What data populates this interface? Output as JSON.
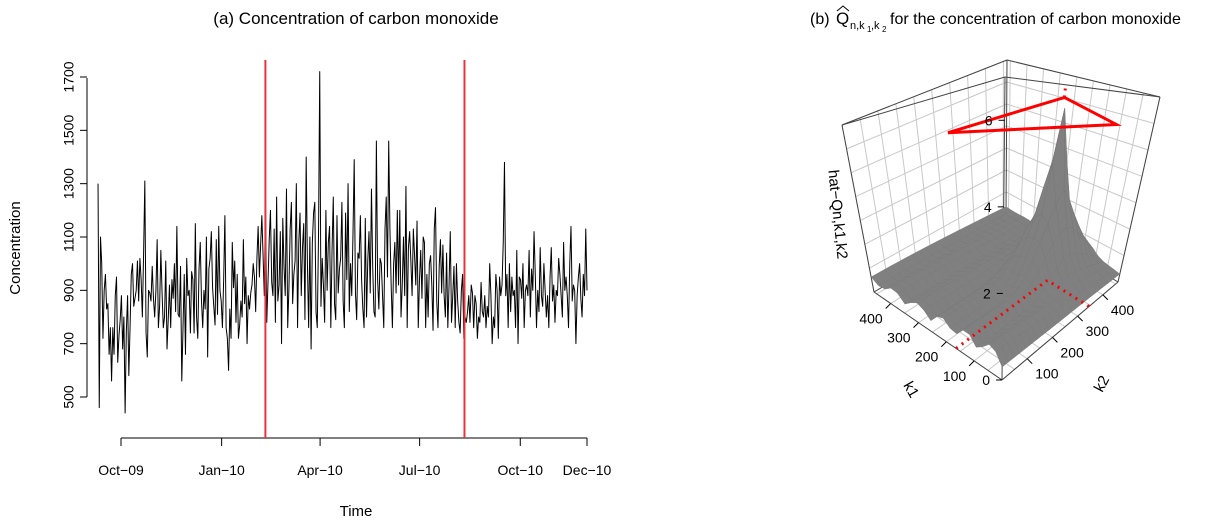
{
  "chart_data": [
    {
      "type": "line",
      "title": "(a) Concentration of carbon monoxide",
      "xlabel": "Time",
      "ylabel": "Concentration",
      "xlim": [
        "2009-09-01",
        "2010-12-01"
      ],
      "ylim": [
        400,
        1760
      ],
      "grid": false,
      "x_ticks": [
        {
          "label": "Oct−09",
          "date": "2009-10-01"
        },
        {
          "label": "Jan−10",
          "date": "2010-01-01"
        },
        {
          "label": "Apr−10",
          "date": "2010-04-01"
        },
        {
          "label": "Jul−10",
          "date": "2010-07-01"
        },
        {
          "label": "Oct−10",
          "date": "2010-10-01"
        },
        {
          "label": "Dec−10",
          "date": "2010-12-01"
        }
      ],
      "y_ticks": [
        500,
        700,
        900,
        1100,
        1300,
        1500,
        1700
      ],
      "change_points": [
        "2010-02-10",
        "2010-08-11"
      ],
      "change_point_color": "#e8343c",
      "series": [
        {
          "color": "#000000",
          "x_start": "2009-09-10",
          "x_end": "2010-12-01",
          "values": [
            1300,
            460,
            1100,
            1000,
            720,
            900,
            960,
            830,
            850,
            660,
            760,
            560,
            760,
            660,
            880,
            950,
            630,
            730,
            790,
            880,
            680,
            800,
            440,
            750,
            880,
            580,
            760,
            960,
            1000,
            840,
            870,
            900,
            1010,
            860,
            1020,
            940,
            800,
            1040,
            1310,
            740,
            650,
            900,
            890,
            860,
            990,
            870,
            800,
            900,
            1090,
            760,
            840,
            1050,
            890,
            760,
            800,
            1010,
            680,
            790,
            920,
            760,
            940,
            870,
            1000,
            820,
            1140,
            810,
            800,
            990,
            560,
            760,
            960,
            660,
            1020,
            880,
            900,
            740,
            970,
            940,
            740,
            1150,
            800,
            720,
            980,
            1080,
            860,
            760,
            900,
            830,
            1100,
            650,
            980,
            1020,
            1120,
            910,
            840,
            770,
            1090,
            810,
            1140,
            900,
            860,
            760,
            940,
            1180,
            760,
            720,
            600,
            830,
            720,
            1080,
            910,
            1010,
            780,
            960,
            720,
            770,
            860,
            800,
            1090,
            850,
            950,
            700,
            880,
            830,
            890,
            920,
            1000,
            950,
            820,
            1020,
            1140,
            950,
            1070,
            1180,
            1030,
            880,
            1240,
            780,
            930,
            1090,
            1200,
            930,
            880,
            1130,
            780,
            1250,
            860,
            920,
            1120,
            700,
            1170,
            990,
            880,
            1280,
            760,
            910,
            1130,
            1230,
            850,
            960,
            1010,
            1300,
            760,
            1080,
            1190,
            880,
            1060,
            1150,
            790,
            1400,
            1000,
            760,
            1100,
            680,
            1080,
            1190,
            1230,
            820,
            760,
            1100,
            1720,
            840,
            1020,
            920,
            780,
            1200,
            900,
            1080,
            1140,
            760,
            1050,
            1250,
            850,
            790,
            1180,
            890,
            980,
            1020,
            1230,
            860,
            760,
            1190,
            940,
            1300,
            820,
            1000,
            880,
            1110,
            1390,
            890,
            790,
            1040,
            1020,
            1180,
            940,
            830,
            760,
            1170,
            800,
            1010,
            1120,
            890,
            1280,
            990,
            820,
            800,
            1460,
            940,
            830,
            1020,
            1000,
            880,
            760,
            1130,
            1250,
            950,
            1460,
            1130,
            920,
            760,
            1000,
            1080,
            890,
            1200,
            920,
            1200,
            800,
            920,
            1100,
            880,
            1290,
            760,
            1060,
            1120,
            1010,
            880,
            1130,
            1030,
            920,
            1160,
            760,
            940,
            1050,
            870,
            1100,
            1080,
            760,
            960,
            800,
            1000,
            1030,
            920,
            750,
            1130,
            1210,
            860,
            760,
            990,
            1090,
            890,
            1070,
            880,
            800,
            1040,
            760,
            920,
            1120,
            780,
            880,
            990,
            760,
            1000,
            860,
            780,
            740,
            900,
            960,
            720,
            800,
            780,
            820,
            880,
            780,
            920,
            890,
            760,
            880,
            850,
            720,
            800,
            780,
            930,
            820,
            800,
            880,
            760,
            840,
            800,
            1000,
            880,
            700,
            800,
            760,
            960,
            900,
            720,
            950,
            880,
            920,
            1080,
            1380,
            880,
            960,
            760,
            1000,
            820,
            950,
            880,
            900,
            760,
            1050,
            700,
            950,
            940,
            870,
            1000,
            760,
            900,
            920,
            880,
            1050,
            800,
            980,
            900,
            1120,
            960,
            760,
            900,
            820,
            1060,
            880,
            840,
            1000,
            900,
            800,
            880,
            760,
            950,
            1060,
            860,
            920,
            780,
            900,
            880,
            1020,
            960,
            880,
            800,
            1080,
            900,
            950,
            880,
            760,
            1000,
            1140,
            860,
            920,
            900,
            700,
            880,
            950,
            1000,
            870,
            800,
            960,
            880,
            1130,
            900
          ]
        }
      ]
    },
    {
      "type": "surface3d",
      "title_main": "(b)",
      "title_math": "Q",
      "title_sub": "n,k",
      "title_sub1": "1",
      "title_sub_sep": ",k",
      "title_sub2": "2",
      "title_rest": "for the concentration of carbon monoxide",
      "xlabel": "k1",
      "ylabel": "k2",
      "zlabel": "hat−Qn,k1,k2",
      "xlim": [
        0,
        460
      ],
      "ylim": [
        0,
        460
      ],
      "zlim": [
        0,
        7
      ],
      "x_ticks": [
        100,
        200,
        300,
        400
      ],
      "y_ticks": [
        100,
        200,
        300,
        400
      ],
      "z_ticks": [
        0,
        2,
        4,
        6
      ],
      "max_point": {
        "k1": 165,
        "k2": 345,
        "value": 6.6
      },
      "surface_color": "#808080",
      "marker_color": "#ff0000"
    }
  ]
}
